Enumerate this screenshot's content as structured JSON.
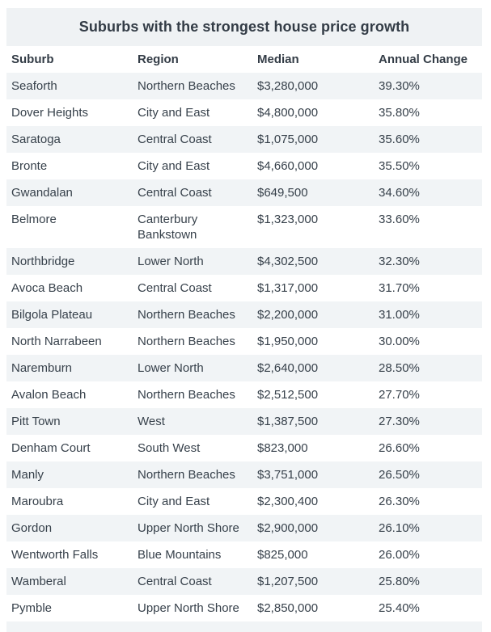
{
  "colors": {
    "title_band_bg": "#eff2f4",
    "row_stripe_bg": "#f1f4f6",
    "text": "#37414b"
  },
  "chart_data": {
    "type": "table",
    "title": "Suburbs with the strongest house price growth",
    "columns": [
      "Suburb",
      "Region",
      "Median",
      "Annual Change"
    ],
    "rows": [
      [
        "Seaforth",
        "Northern Beaches",
        "$3,280,000",
        "39.30%"
      ],
      [
        "Dover Heights",
        "City and East",
        "$4,800,000",
        "35.80%"
      ],
      [
        "Saratoga",
        "Central Coast",
        "$1,075,000",
        "35.60%"
      ],
      [
        "Bronte",
        "City and East",
        "$4,660,000",
        "35.50%"
      ],
      [
        "Gwandalan",
        "Central Coast",
        "$649,500",
        "34.60%"
      ],
      [
        "Belmore",
        "Canterbury Bankstown",
        "$1,323,000",
        "33.60%"
      ],
      [
        "Northbridge",
        "Lower North",
        "$4,302,500",
        "32.30%"
      ],
      [
        "Avoca Beach",
        "Central Coast",
        "$1,317,000",
        "31.70%"
      ],
      [
        "Bilgola Plateau",
        "Northern Beaches",
        "$2,200,000",
        "31.00%"
      ],
      [
        "North Narrabeen",
        "Northern Beaches",
        "$1,950,000",
        "30.00%"
      ],
      [
        "Naremburn",
        "Lower North",
        "$2,640,000",
        "28.50%"
      ],
      [
        "Avalon Beach",
        "Northern Beaches",
        "$2,512,500",
        "27.70%"
      ],
      [
        "Pitt Town",
        "West",
        "$1,387,500",
        "27.30%"
      ],
      [
        "Denham Court",
        "South West",
        "$823,000",
        "26.60%"
      ],
      [
        "Manly",
        "Northern Beaches",
        "$3,751,000",
        "26.50%"
      ],
      [
        "Maroubra",
        "City and East",
        "$2,300,400",
        "26.30%"
      ],
      [
        "Gordon",
        "Upper North Shore",
        "$2,900,000",
        "26.10%"
      ],
      [
        "Wentworth Falls",
        "Blue Mountains",
        "$825,000",
        "26.00%"
      ],
      [
        "Wamberal",
        "Central Coast",
        "$1,207,500",
        "25.80%"
      ],
      [
        "Pymble",
        "Upper North Shore",
        "$2,850,000",
        "25.40%"
      ]
    ]
  }
}
